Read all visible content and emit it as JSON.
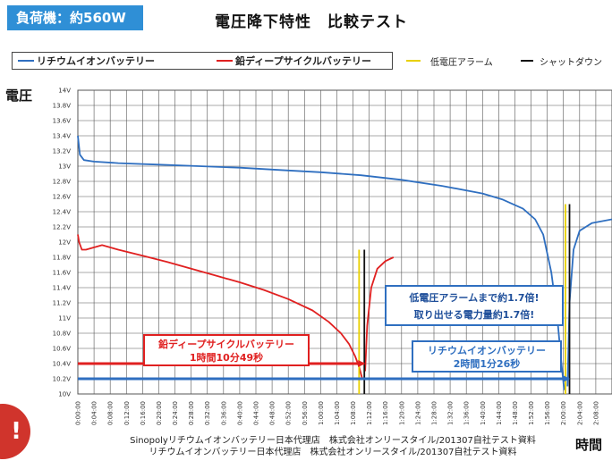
{
  "header": {
    "load_label": "負荷機：約560W",
    "title": "電圧降下特性　比較テスト"
  },
  "legend": {
    "lithium": "リチウムイオンバッテリー",
    "lead": "鉛ディープサイクルバッテリー",
    "alarm": "低電圧アラーム",
    "shutdown": "シャットダウン"
  },
  "colors": {
    "lithium": "#2f6fc0",
    "lead": "#e02020",
    "alarm": "#e8d000",
    "shutdown": "#111111",
    "badge": "#2f8fd6"
  },
  "callouts": {
    "comparison_line1": "低電圧アラームまで約1.7倍!",
    "comparison_line2": "取り出せる電力量約1.7倍!",
    "lead_name": "鉛ディープサイクルバッテリー",
    "lead_time": "1時間10分49秒",
    "lithium_name": "リチウムイオンバッテリー",
    "lithium_time": "2時間1分26秒"
  },
  "footer": {
    "line1": "Sinopolyリチウムイオンバッテリー日本代理店　株式会社オンリースタイル/201307自社テスト資料",
    "line2": "リチウムイオンバッテリー日本代理店　株式会社オンリースタイル/201307自社テスト資料"
  },
  "corner_badge": "!",
  "chart_data": {
    "type": "line",
    "title": "電圧降下特性　比較テスト",
    "ylabel": "電圧",
    "xlabel": "時間",
    "grid": true,
    "legend_position": "top",
    "ylim": [
      10,
      14
    ],
    "y_ticks": [
      "10V",
      "10.2V",
      "10.4V",
      "10.6V",
      "10.8V",
      "11V",
      "11.2V",
      "11.4V",
      "11.6V",
      "11.8V",
      "12V",
      "12.2V",
      "12.4V",
      "12.6V",
      "12.8V",
      "13V",
      "13.2V",
      "13.4V",
      "13.6V",
      "13.8V",
      "14V"
    ],
    "x_ticks": [
      "0:00:00",
      "0:04:00",
      "0:08:00",
      "0:12:00",
      "0:16:00",
      "0:20:00",
      "0:24:00",
      "0:28:00",
      "0:32:00",
      "0:36:00",
      "0:40:00",
      "0:44:00",
      "0:48:00",
      "0:52:00",
      "0:56:00",
      "1:00:00",
      "1:04:00",
      "1:08:00",
      "1:12:00",
      "1:16:00",
      "1:20:00",
      "1:24:00",
      "1:28:00",
      "1:32:00",
      "1:36:00",
      "1:40:00",
      "1:44:00",
      "1:48:00",
      "1:52:00",
      "1:56:00",
      "2:00:00",
      "2:04:00",
      "2:08:00"
    ],
    "xlim_minutes": [
      0,
      132
    ],
    "series": [
      {
        "name": "リチウムイオンバッテリー",
        "color": "#2f6fc0",
        "points": [
          [
            0,
            13.4
          ],
          [
            0.5,
            13.15
          ],
          [
            1.5,
            13.08
          ],
          [
            4,
            13.06
          ],
          [
            10,
            13.04
          ],
          [
            20,
            13.02
          ],
          [
            30,
            13.0
          ],
          [
            40,
            12.98
          ],
          [
            50,
            12.95
          ],
          [
            60,
            12.92
          ],
          [
            70,
            12.88
          ],
          [
            80,
            12.82
          ],
          [
            90,
            12.74
          ],
          [
            100,
            12.64
          ],
          [
            105,
            12.56
          ],
          [
            110,
            12.44
          ],
          [
            113,
            12.3
          ],
          [
            115,
            12.1
          ],
          [
            117,
            11.6
          ],
          [
            118.5,
            11.0
          ],
          [
            119.5,
            10.4
          ],
          [
            120.2,
            10.05
          ]
        ]
      },
      {
        "name": "",
        "color": "#2f6fc0",
        "points": [
          [
            121,
            10.1
          ],
          [
            121.5,
            11.2
          ],
          [
            122.5,
            11.9
          ],
          [
            124,
            12.15
          ],
          [
            127,
            12.25
          ],
          [
            132,
            12.3
          ]
        ]
      },
      {
        "name": "鉛ディープサイクルバッテリー",
        "color": "#e02020",
        "points": [
          [
            0,
            12.1
          ],
          [
            0.3,
            12.0
          ],
          [
            1,
            11.9
          ],
          [
            2,
            11.9
          ],
          [
            6,
            11.96
          ],
          [
            10,
            11.9
          ],
          [
            16,
            11.82
          ],
          [
            22,
            11.74
          ],
          [
            28,
            11.65
          ],
          [
            34,
            11.56
          ],
          [
            40,
            11.47
          ],
          [
            46,
            11.37
          ],
          [
            52,
            11.25
          ],
          [
            58,
            11.1
          ],
          [
            62,
            10.95
          ],
          [
            65,
            10.8
          ],
          [
            67,
            10.66
          ],
          [
            68.5,
            10.5
          ],
          [
            69.5,
            10.36
          ],
          [
            70.3,
            10.2
          ],
          [
            70.8,
            10.2
          ]
        ]
      },
      {
        "name": "",
        "color": "#e02020",
        "points": [
          [
            71,
            10.3
          ],
          [
            71.5,
            10.9
          ],
          [
            72.5,
            11.4
          ],
          [
            74,
            11.65
          ],
          [
            76,
            11.75
          ],
          [
            78,
            11.8
          ]
        ]
      }
    ],
    "markers": [
      {
        "name": "低電圧アラーム",
        "color": "#e8d000",
        "x": 69.5,
        "y_range": [
          10.0,
          11.9
        ]
      },
      {
        "name": "シャットダウン",
        "color": "#111111",
        "x": 70.8,
        "y_range": [
          10.0,
          11.9
        ]
      },
      {
        "name": "低電圧アラーム",
        "color": "#e8d000",
        "x": 120.5,
        "y_range": [
          10.0,
          12.5
        ]
      },
      {
        "name": "シャットダウン",
        "color": "#111111",
        "x": 121.5,
        "y_range": [
          10.0,
          12.5
        ]
      }
    ],
    "arrows": [
      {
        "color": "#e02020",
        "y": 10.4,
        "x_end": 70.8
      },
      {
        "color": "#2f6fc0",
        "y": 10.2,
        "x_end": 121.4
      }
    ]
  }
}
